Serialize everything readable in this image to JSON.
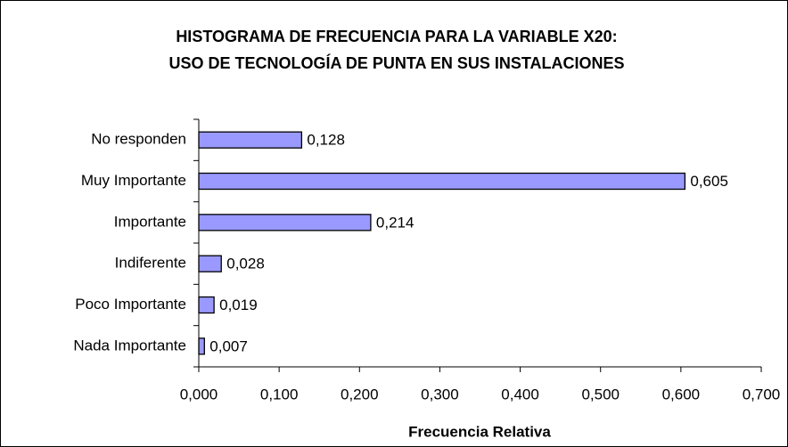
{
  "chart_data": {
    "type": "bar",
    "orientation": "horizontal",
    "title": [
      "HISTOGRAMA DE FRECUENCIA PARA LA VARIABLE  X20:",
      "USO DE TECNOLOGÍA DE PUNTA EN SUS INSTALACIONES"
    ],
    "xlabel": "Frecuencia Relativa",
    "categories": [
      "No responden",
      "Muy Importante",
      "Importante",
      "Indiferente",
      "Poco Importante",
      "Nada Importante"
    ],
    "values": [
      0.128,
      0.605,
      0.214,
      0.028,
      0.019,
      0.007
    ],
    "value_labels": [
      "0,128",
      "0,605",
      "0,214",
      "0,028",
      "0,019",
      "0,007"
    ],
    "color": "#9999ff",
    "xlim": [
      0,
      0.7
    ],
    "xticks": [
      {
        "value": 0,
        "label": "0,000"
      },
      {
        "value": 0.1,
        "label": "0,100"
      },
      {
        "value": 0.2,
        "label": "0,200"
      },
      {
        "value": 0.3,
        "label": "0,300"
      },
      {
        "value": 0.4,
        "label": "0,400"
      },
      {
        "value": 0.5,
        "label": "0,500"
      },
      {
        "value": 0.6,
        "label": "0,600"
      },
      {
        "value": 0.7,
        "label": "0,700"
      }
    ],
    "grid": false
  }
}
